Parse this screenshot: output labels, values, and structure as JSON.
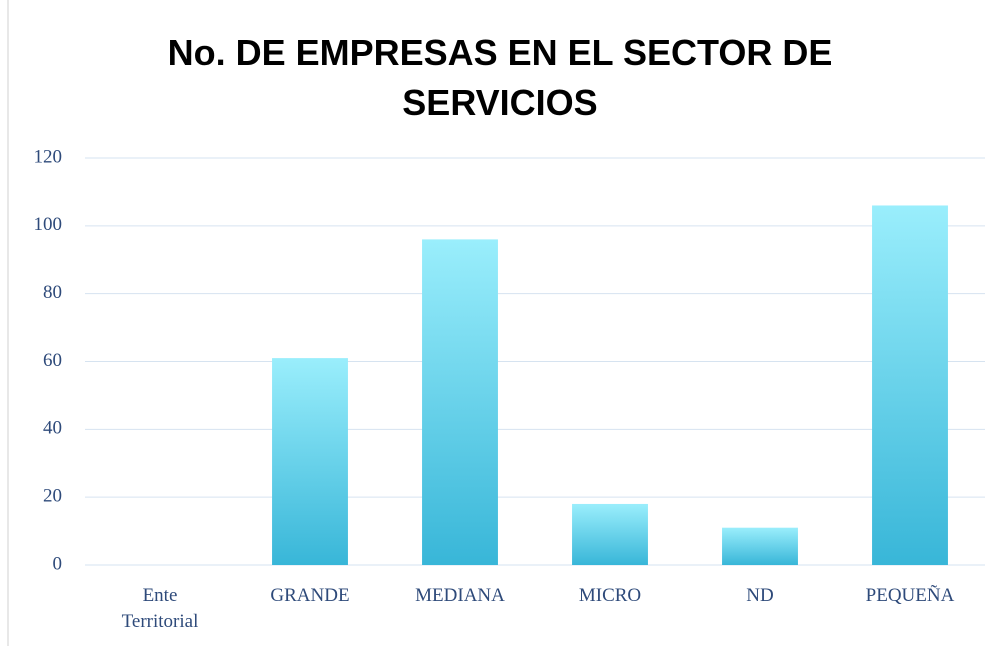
{
  "chart_data": {
    "type": "bar",
    "title": "No. DE EMPRESAS EN EL SECTOR DE SERVICIOS",
    "categories": [
      "Ente Territorial",
      "GRANDE",
      "MEDIANA",
      "MICRO",
      "ND",
      "PEQUEÑA"
    ],
    "values": [
      0,
      61,
      96,
      18,
      11,
      106
    ],
    "color": "#45bedd",
    "ylim": [
      0,
      120
    ],
    "yticks": [
      0,
      20,
      40,
      60,
      80,
      100,
      120
    ],
    "grid": true
  }
}
